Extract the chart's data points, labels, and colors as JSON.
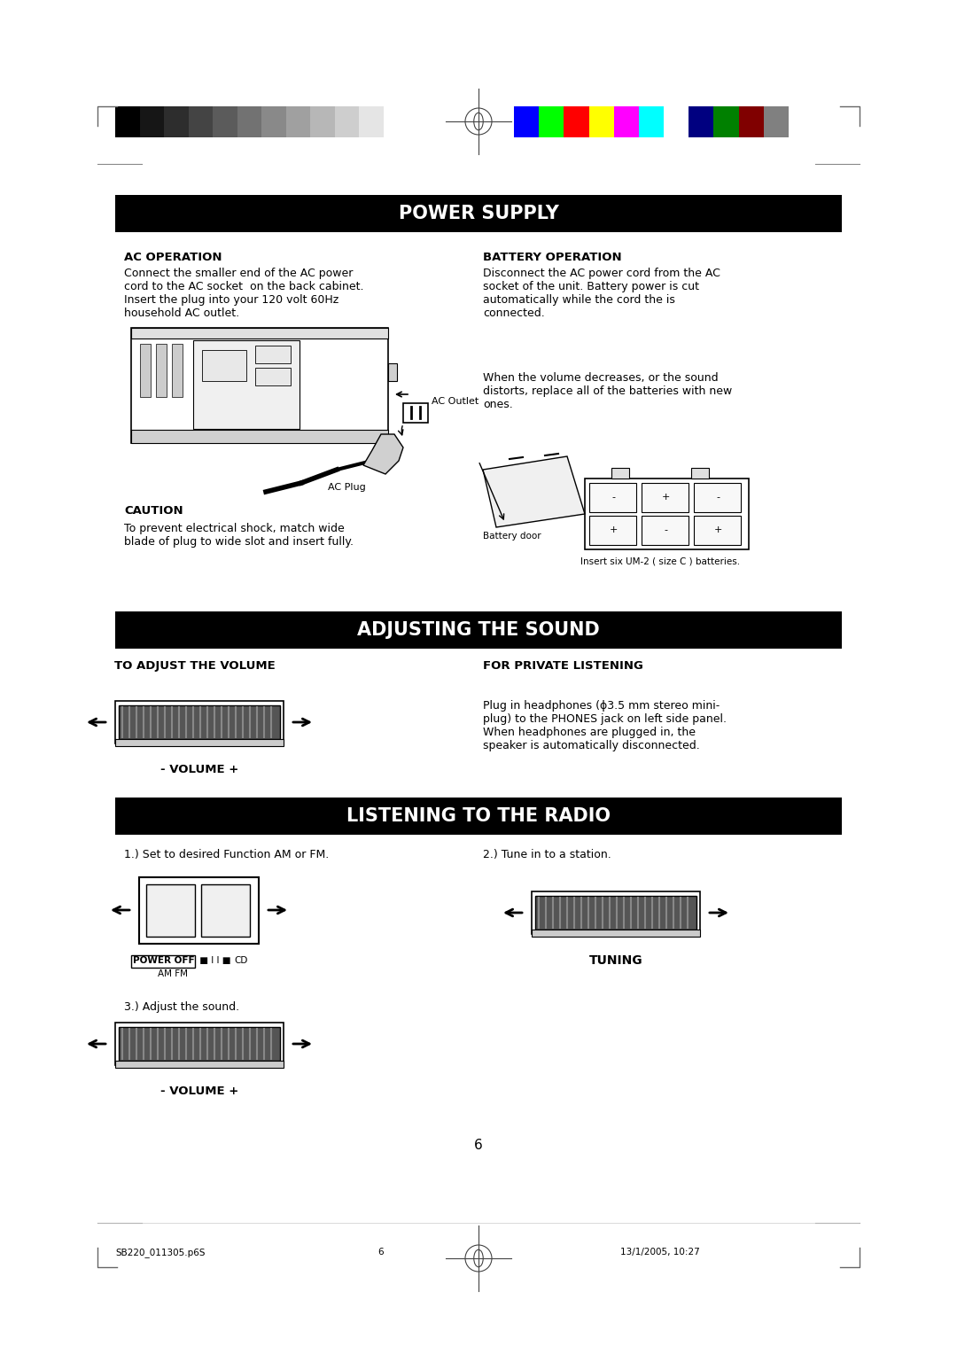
{
  "bg_color": "#ffffff",
  "page_width": 10.8,
  "page_height": 15.28,
  "grayscale_colors": [
    "#000000",
    "#161616",
    "#2d2d2d",
    "#444444",
    "#5b5b5b",
    "#727272",
    "#898989",
    "#a0a0a0",
    "#b7b7b7",
    "#cecece",
    "#e5e5e5",
    "#ffffff"
  ],
  "color_bar_colors": [
    "#0000ff",
    "#00ff00",
    "#ff0000",
    "#ffff00",
    "#ff00ff",
    "#00ffff",
    "#ffffff",
    "#000080",
    "#008000",
    "#800000",
    "#808080"
  ],
  "power_supply_header": "POWER SUPPLY",
  "adjusting_sound_header": "ADJUSTING THE SOUND",
  "listening_radio_header": "LISTENING TO THE RADIO",
  "ac_op_title": "AC OPERATION",
  "ac_op_body": "Connect the smaller end of the AC power\ncord to the AC socket  on the back cabinet.\nInsert the plug into your 120 volt 60Hz\nhousehold AC outlet.",
  "battery_op_title": "BATTERY OPERATION",
  "battery_op_body": "Disconnect the AC power cord from the AC\nsocket of the unit. Battery power is cut\nautomatically while the cord the is\nconnected.",
  "battery_note": "When the volume decreases, or the sound\ndistorts, replace all of the batteries with new\nones.",
  "caution_title": "CAUTION",
  "caution_body": "To prevent electrical shock, match wide\nblade of plug to wide slot and insert fully.",
  "battery_door_label": "Battery door",
  "insert_batteries_label": "Insert six UM-2 ( size C ) batteries.",
  "ac_outlet_label": "AC Outlet",
  "ac_plug_label": "AC Plug",
  "to_adjust_volume": "TO ADJUST THE VOLUME",
  "for_private_listening": "FOR PRIVATE LISTENING",
  "private_listening_body": "Plug in headphones (ϕ3.5 mm stereo mini-\nplug) to the PHONES jack on left side panel.\nWhen headphones are plugged in, the\nspeaker is automatically disconnected.",
  "volume_label": "- VOLUME +",
  "step1": "1.) Set to desired Function AM or FM.",
  "step2": "2.) Tune in to a station.",
  "step3": "3.) Adjust the sound.",
  "tuning_label": "TUNING",
  "power_off_text": "POWER OFF",
  "dots_text": "■ I I ■",
  "cd_text": "CD",
  "am_fm_text": "AM FM",
  "page_num": "6",
  "footer_left": "SB220_011305.p6S",
  "footer_center": "6",
  "footer_right": "13/1/2005, 10:27"
}
